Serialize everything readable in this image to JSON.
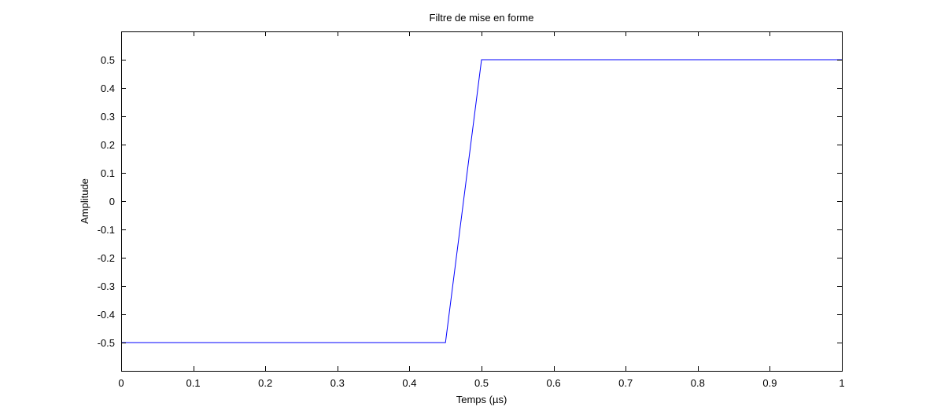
{
  "chart_data": {
    "type": "line",
    "title": "Filtre de mise en forme",
    "xlabel": "Temps (µs)",
    "ylabel": "Amplitude",
    "xlim": [
      0,
      1
    ],
    "ylim": [
      -0.6,
      0.6
    ],
    "x_ticks": [
      0,
      0.1,
      0.2,
      0.3,
      0.4,
      0.5,
      0.6,
      0.7,
      0.8,
      0.9,
      1
    ],
    "x_tick_labels": [
      "0",
      "0.1",
      "0.2",
      "0.3",
      "0.4",
      "0.5",
      "0.6",
      "0.7",
      "0.8",
      "0.9",
      "1"
    ],
    "y_ticks": [
      -0.5,
      -0.4,
      -0.3,
      -0.2,
      -0.1,
      0,
      0.1,
      0.2,
      0.3,
      0.4,
      0.5
    ],
    "y_tick_labels": [
      "-0.5",
      "-0.4",
      "-0.3",
      "-0.2",
      "-0.1",
      "0",
      "0.1",
      "0.2",
      "0.3",
      "0.4",
      "0.5"
    ],
    "grid": false,
    "series": [
      {
        "color": "#0000ff",
        "x": [
          0,
          0.45,
          0.5,
          1
        ],
        "y": [
          -0.5,
          -0.5,
          0.5,
          0.5
        ]
      }
    ]
  }
}
